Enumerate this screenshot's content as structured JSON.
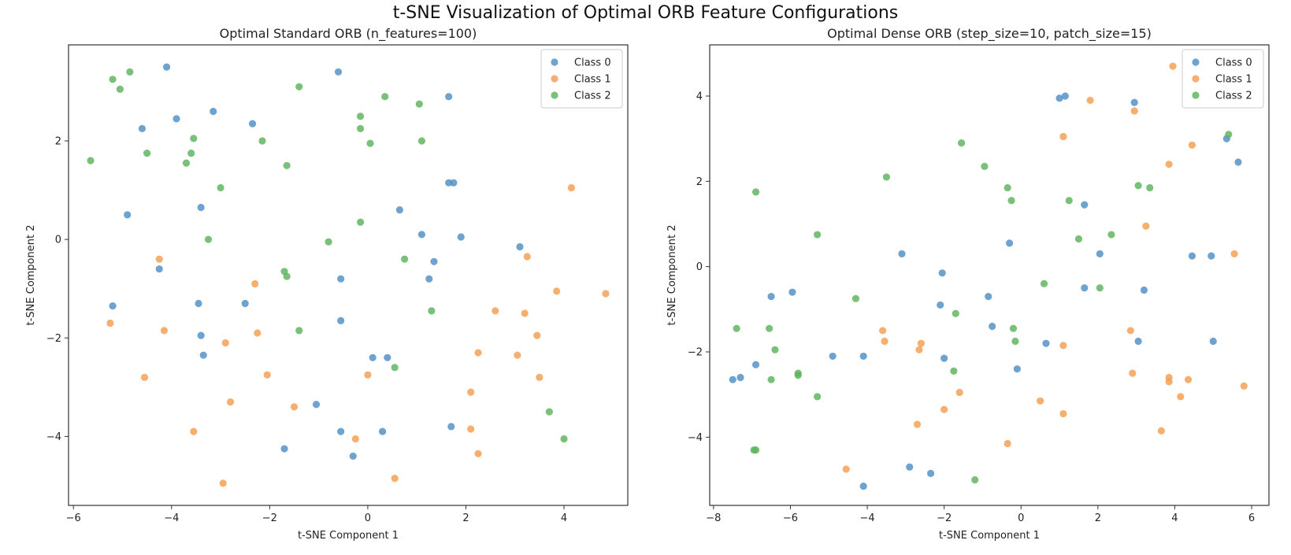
{
  "figure": {
    "suptitle": "t-SNE Visualization of Optimal ORB Feature Configurations"
  },
  "colors": {
    "class0": "#4f8fc4",
    "class1": "#f59d4f",
    "class2": "#5cb35c"
  },
  "chart_data": [
    {
      "type": "scatter",
      "title": "Optimal Standard ORB (n_features=100)",
      "xlabel": "t-SNE Component 1",
      "ylabel": "t-SNE Component 2",
      "xlim": [
        -6.1,
        5.3
      ],
      "ylim": [
        -5.4,
        3.95
      ],
      "xticks": [
        -6,
        -4,
        -2,
        0,
        2,
        4
      ],
      "yticks": [
        -4,
        -2,
        0,
        2
      ],
      "grid": false,
      "legend": "top-right",
      "series": [
        {
          "name": "Class 0",
          "color": "#4f8fc4",
          "points": [
            [
              -4.1,
              3.5
            ],
            [
              -0.6,
              3.4
            ],
            [
              1.65,
              2.9
            ],
            [
              -3.15,
              2.6
            ],
            [
              -3.9,
              2.45
            ],
            [
              -2.35,
              2.35
            ],
            [
              -4.6,
              2.25
            ],
            [
              1.65,
              1.15
            ],
            [
              1.75,
              1.15
            ],
            [
              -3.4,
              0.65
            ],
            [
              0.65,
              0.6
            ],
            [
              -4.9,
              0.5
            ],
            [
              1.1,
              0.1
            ],
            [
              1.9,
              0.05
            ],
            [
              3.1,
              -0.15
            ],
            [
              -4.25,
              -0.6
            ],
            [
              1.35,
              -0.45
            ],
            [
              -0.55,
              -0.8
            ],
            [
              1.25,
              -0.8
            ],
            [
              -2.5,
              -1.3
            ],
            [
              -3.45,
              -1.3
            ],
            [
              -5.2,
              -1.35
            ],
            [
              -0.55,
              -1.65
            ],
            [
              -3.4,
              -1.95
            ],
            [
              -3.35,
              -2.35
            ],
            [
              0.1,
              -2.4
            ],
            [
              0.4,
              -2.4
            ],
            [
              -1.05,
              -3.35
            ],
            [
              1.7,
              -3.8
            ],
            [
              -0.55,
              -3.9
            ],
            [
              0.3,
              -3.9
            ],
            [
              -1.7,
              -4.25
            ],
            [
              -0.3,
              -4.4
            ]
          ]
        },
        {
          "name": "Class 1",
          "color": "#f59d4f",
          "points": [
            [
              4.15,
              1.05
            ],
            [
              -4.25,
              -0.4
            ],
            [
              3.25,
              -0.35
            ],
            [
              -2.3,
              -0.9
            ],
            [
              3.85,
              -1.05
            ],
            [
              4.85,
              -1.1
            ],
            [
              2.6,
              -1.45
            ],
            [
              3.2,
              -1.5
            ],
            [
              -5.25,
              -1.7
            ],
            [
              -4.15,
              -1.85
            ],
            [
              -2.25,
              -1.9
            ],
            [
              3.45,
              -1.95
            ],
            [
              -2.9,
              -2.1
            ],
            [
              2.25,
              -2.3
            ],
            [
              3.05,
              -2.35
            ],
            [
              -2.05,
              -2.75
            ],
            [
              0.0,
              -2.75
            ],
            [
              -4.55,
              -2.8
            ],
            [
              3.5,
              -2.8
            ],
            [
              2.1,
              -3.1
            ],
            [
              -2.8,
              -3.3
            ],
            [
              -1.5,
              -3.4
            ],
            [
              -3.55,
              -3.9
            ],
            [
              2.1,
              -3.85
            ],
            [
              -0.25,
              -4.05
            ],
            [
              2.25,
              -4.35
            ],
            [
              0.55,
              -4.85
            ],
            [
              -2.95,
              -4.95
            ]
          ]
        },
        {
          "name": "Class 2",
          "color": "#5cb35c",
          "points": [
            [
              -4.85,
              3.4
            ],
            [
              -5.2,
              3.25
            ],
            [
              -5.05,
              3.05
            ],
            [
              -1.4,
              3.1
            ],
            [
              0.35,
              2.9
            ],
            [
              1.05,
              2.75
            ],
            [
              -0.15,
              2.5
            ],
            [
              -0.15,
              2.25
            ],
            [
              -3.55,
              2.05
            ],
            [
              -2.15,
              2.0
            ],
            [
              1.1,
              2.0
            ],
            [
              0.05,
              1.95
            ],
            [
              -4.5,
              1.75
            ],
            [
              -3.6,
              1.75
            ],
            [
              -5.65,
              1.6
            ],
            [
              -3.7,
              1.55
            ],
            [
              -1.65,
              1.5
            ],
            [
              -3.0,
              1.05
            ],
            [
              -0.15,
              0.35
            ],
            [
              -3.25,
              0.0
            ],
            [
              -0.8,
              -0.05
            ],
            [
              0.75,
              -0.4
            ],
            [
              -1.7,
              -0.65
            ],
            [
              -1.65,
              -0.75
            ],
            [
              1.3,
              -1.45
            ],
            [
              -1.4,
              -1.85
            ],
            [
              0.55,
              -2.6
            ],
            [
              3.7,
              -3.5
            ],
            [
              4.0,
              -4.05
            ]
          ]
        }
      ]
    },
    {
      "type": "scatter",
      "title": "Optimal Dense ORB (step_size=10, patch_size=15)",
      "xlabel": "t-SNE Component 1",
      "ylabel": "t-SNE Component 2",
      "xlim": [
        -8.1,
        6.45
      ],
      "ylim": [
        -5.6,
        5.2
      ],
      "xticks": [
        -8,
        -6,
        -4,
        -2,
        0,
        2,
        4,
        6
      ],
      "yticks": [
        -4,
        -2,
        0,
        2,
        4
      ],
      "grid": false,
      "legend": "top-right",
      "series": [
        {
          "name": "Class 0",
          "color": "#4f8fc4",
          "points": [
            [
              1.0,
              3.95
            ],
            [
              1.15,
              4.0
            ],
            [
              2.95,
              3.85
            ],
            [
              5.35,
              3.0
            ],
            [
              5.65,
              2.45
            ],
            [
              1.65,
              1.45
            ],
            [
              2.05,
              0.3
            ],
            [
              -3.1,
              0.3
            ],
            [
              -0.3,
              0.55
            ],
            [
              4.45,
              0.25
            ],
            [
              4.95,
              0.25
            ],
            [
              -2.05,
              -0.15
            ],
            [
              -6.5,
              -0.7
            ],
            [
              -5.95,
              -0.6
            ],
            [
              1.65,
              -0.5
            ],
            [
              3.2,
              -0.55
            ],
            [
              -0.85,
              -0.7
            ],
            [
              -2.1,
              -0.9
            ],
            [
              -0.75,
              -1.4
            ],
            [
              -4.9,
              -2.1
            ],
            [
              -4.1,
              -2.1
            ],
            [
              -2.0,
              -2.15
            ],
            [
              3.05,
              -1.75
            ],
            [
              5.0,
              -1.75
            ],
            [
              0.65,
              -1.8
            ],
            [
              -0.1,
              -2.4
            ],
            [
              -7.5,
              -2.65
            ],
            [
              -7.3,
              -2.6
            ],
            [
              -6.9,
              -2.3
            ],
            [
              -2.9,
              -4.7
            ],
            [
              -2.35,
              -4.85
            ],
            [
              -4.1,
              -5.15
            ]
          ]
        },
        {
          "name": "Class 1",
          "color": "#f59d4f",
          "points": [
            [
              3.95,
              4.7
            ],
            [
              1.8,
              3.9
            ],
            [
              2.95,
              3.65
            ],
            [
              1.1,
              3.05
            ],
            [
              4.45,
              2.85
            ],
            [
              3.85,
              2.4
            ],
            [
              3.25,
              0.95
            ],
            [
              5.55,
              0.3
            ],
            [
              -3.6,
              -1.5
            ],
            [
              -3.55,
              -1.75
            ],
            [
              -2.6,
              -1.8
            ],
            [
              -2.65,
              -1.95
            ],
            [
              1.1,
              -1.85
            ],
            [
              2.85,
              -1.5
            ],
            [
              2.9,
              -2.5
            ],
            [
              3.85,
              -2.6
            ],
            [
              3.85,
              -2.7
            ],
            [
              4.35,
              -2.65
            ],
            [
              5.8,
              -2.8
            ],
            [
              -1.6,
              -2.95
            ],
            [
              4.15,
              -3.05
            ],
            [
              0.5,
              -3.15
            ],
            [
              -2.0,
              -3.35
            ],
            [
              1.1,
              -3.45
            ],
            [
              -2.7,
              -3.7
            ],
            [
              3.65,
              -3.85
            ],
            [
              -0.35,
              -4.15
            ],
            [
              -4.55,
              -4.75
            ]
          ]
        },
        {
          "name": "Class 2",
          "color": "#5cb35c",
          "points": [
            [
              5.4,
              3.1
            ],
            [
              -1.55,
              2.9
            ],
            [
              -0.95,
              2.35
            ],
            [
              -3.5,
              2.1
            ],
            [
              -0.35,
              1.85
            ],
            [
              3.05,
              1.9
            ],
            [
              3.35,
              1.85
            ],
            [
              -6.9,
              1.75
            ],
            [
              -0.25,
              1.55
            ],
            [
              1.25,
              1.55
            ],
            [
              2.35,
              0.75
            ],
            [
              -5.3,
              0.75
            ],
            [
              1.5,
              0.65
            ],
            [
              0.6,
              -0.4
            ],
            [
              2.05,
              -0.5
            ],
            [
              -4.3,
              -0.75
            ],
            [
              -1.7,
              -1.1
            ],
            [
              -7.4,
              -1.45
            ],
            [
              -6.55,
              -1.45
            ],
            [
              -0.2,
              -1.45
            ],
            [
              -6.4,
              -1.95
            ],
            [
              -0.15,
              -1.75
            ],
            [
              -1.75,
              -2.45
            ],
            [
              -5.8,
              -2.5
            ],
            [
              -5.8,
              -2.55
            ],
            [
              -6.5,
              -2.65
            ],
            [
              -5.3,
              -3.05
            ],
            [
              -6.9,
              -4.3
            ],
            [
              -6.95,
              -4.3
            ],
            [
              -1.2,
              -5.0
            ]
          ]
        }
      ]
    }
  ]
}
